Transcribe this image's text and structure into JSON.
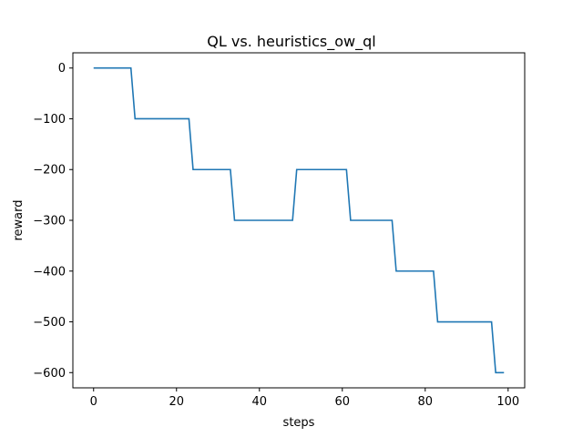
{
  "chart_data": {
    "type": "line",
    "title": "QL vs. heuristics_ow_ql",
    "xlabel": "steps",
    "ylabel": "reward",
    "xlim": [
      -5,
      104
    ],
    "ylim": [
      -630,
      30
    ],
    "xticks": [
      0,
      20,
      40,
      60,
      80,
      100
    ],
    "yticks": [
      0,
      -100,
      -200,
      -300,
      -400,
      -500,
      -600
    ],
    "xtick_labels": [
      "0",
      "20",
      "40",
      "60",
      "80",
      "100"
    ],
    "ytick_labels": [
      "0",
      "−100",
      "−200",
      "−300",
      "−400",
      "−500",
      "−600"
    ],
    "grid": false,
    "line_color": "#1f77b4",
    "series": [
      {
        "x": [
          0,
          9,
          10,
          23,
          24,
          33,
          34,
          48,
          49,
          61,
          62,
          72,
          73,
          82,
          83,
          96,
          97,
          99
        ],
        "y": [
          0,
          0,
          -100,
          -100,
          -200,
          -200,
          -300,
          -300,
          -200,
          -200,
          -300,
          -300,
          -400,
          -400,
          -500,
          -500,
          -600,
          -600
        ]
      }
    ]
  }
}
